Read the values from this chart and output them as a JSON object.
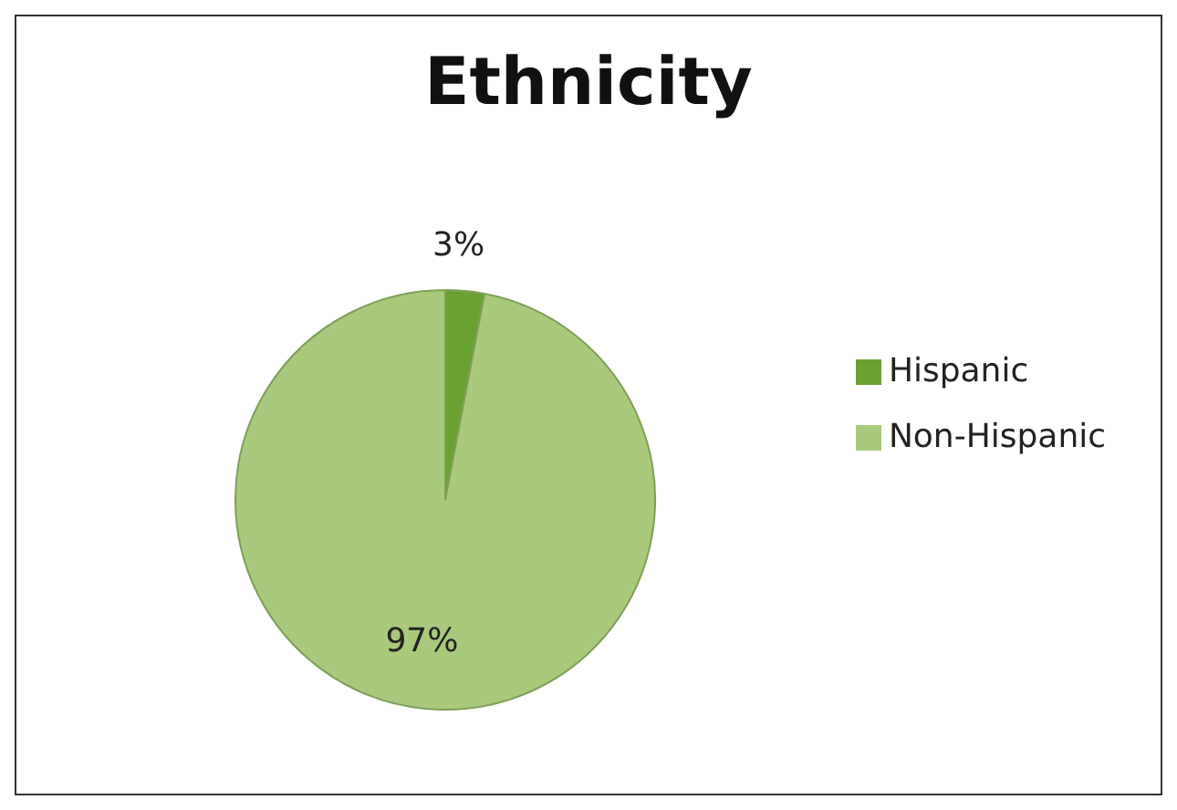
{
  "chart_data": {
    "type": "pie",
    "title": "Ethnicity",
    "categories": [
      "Hispanic",
      "Non-Hispanic"
    ],
    "values": [
      3,
      97
    ],
    "colors": [
      "#6aa232",
      "#a9c97c"
    ],
    "value_labels": [
      "3%",
      "97%"
    ],
    "legend": "right"
  }
}
